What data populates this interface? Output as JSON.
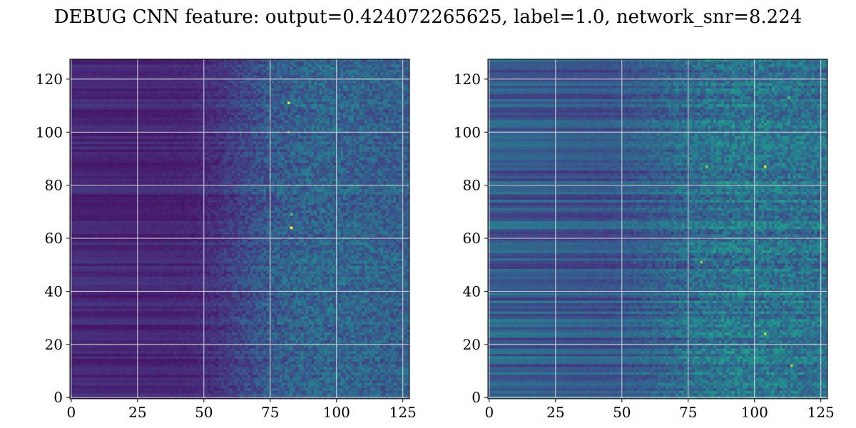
{
  "title": "DEBUG CNN feature: output=0.424072265625, label=1.0, network_snr=8.224",
  "colors": {
    "colormap": "viridis",
    "grid": "#d8d8d8",
    "axes_edge": "#000000",
    "background": "#ffffff"
  },
  "chart_data": [
    {
      "type": "heatmap",
      "name": "left-feature-map",
      "shape": [
        128,
        128
      ],
      "colormap": "viridis",
      "grid": true,
      "x_ticks": [
        0,
        25,
        50,
        75,
        100,
        125
      ],
      "y_ticks": [
        0,
        20,
        40,
        60,
        80,
        100,
        120
      ],
      "xlim": [
        -0.5,
        127.5
      ],
      "ylim": [
        127.5,
        -0.5
      ],
      "value_range": [
        0,
        1
      ],
      "column_profile": {
        "columns": [
          0,
          25,
          45,
          55,
          65,
          75,
          90,
          100,
          127
        ],
        "mean_intensity": [
          0.12,
          0.11,
          0.11,
          0.14,
          0.2,
          0.26,
          0.3,
          0.3,
          0.28
        ],
        "noise_amplitude": [
          0.02,
          0.02,
          0.04,
          0.1,
          0.16,
          0.22,
          0.24,
          0.24,
          0.22
        ]
      },
      "row_banding": 0.06,
      "bright_spots": [
        {
          "row": 16,
          "col": 82,
          "value": 0.95
        },
        {
          "row": 27,
          "col": 82,
          "value": 0.75
        },
        {
          "row": 63,
          "col": 83,
          "value": 0.98
        },
        {
          "row": 58,
          "col": 83,
          "value": 0.7
        }
      ]
    },
    {
      "type": "heatmap",
      "name": "right-feature-map",
      "shape": [
        128,
        128
      ],
      "colormap": "viridis",
      "grid": true,
      "x_ticks": [
        0,
        25,
        50,
        75,
        100,
        125
      ],
      "y_ticks": [
        0,
        20,
        40,
        60,
        80,
        100,
        120
      ],
      "xlim": [
        -0.5,
        127.5
      ],
      "ylim": [
        127.5,
        -0.5
      ],
      "value_range": [
        0,
        1
      ],
      "column_profile": {
        "columns": [
          0,
          25,
          45,
          55,
          65,
          75,
          90,
          100,
          127
        ],
        "mean_intensity": [
          0.3,
          0.28,
          0.26,
          0.28,
          0.3,
          0.33,
          0.36,
          0.36,
          0.34
        ],
        "noise_amplitude": [
          0.03,
          0.03,
          0.06,
          0.1,
          0.16,
          0.22,
          0.26,
          0.26,
          0.24
        ]
      },
      "row_banding": 0.14,
      "bright_spots": [
        {
          "row": 40,
          "col": 104,
          "value": 0.98
        },
        {
          "row": 40,
          "col": 82,
          "value": 0.8
        },
        {
          "row": 76,
          "col": 80,
          "value": 0.8
        },
        {
          "row": 103,
          "col": 104,
          "value": 0.85
        },
        {
          "row": 115,
          "col": 114,
          "value": 0.82
        },
        {
          "row": 14,
          "col": 113,
          "value": 0.7
        }
      ]
    }
  ]
}
